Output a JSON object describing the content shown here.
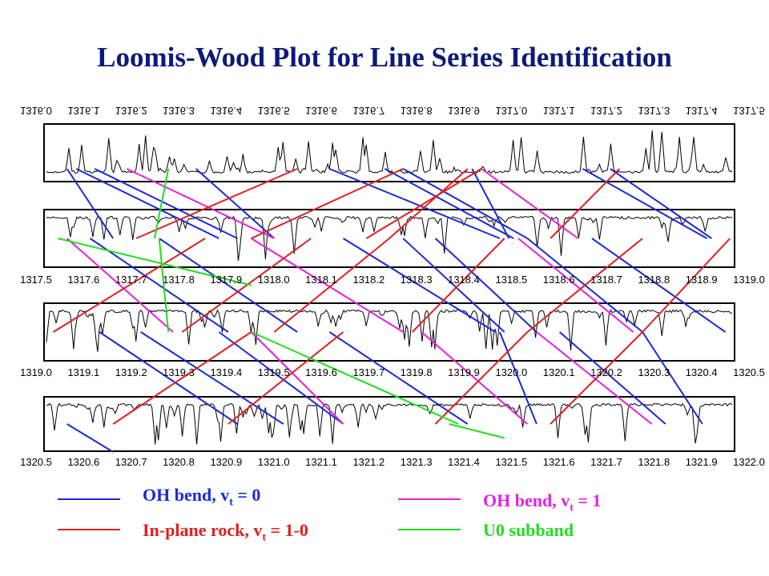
{
  "page": {
    "title": "Loomis-Wood Plot for Line Series Identification"
  },
  "chart_data": {
    "type": "line",
    "title": "Loomis-Wood Plot for Line Series Identification",
    "panels": [
      {
        "range": [
          1316.0,
          1317.5
        ],
        "ticks": [
          "1316.0",
          "1316.1",
          "1316.2",
          "1316.3",
          "1316.4",
          "1316.5",
          "1316.6",
          "1316.7",
          "1316.8",
          "1316.9",
          "1317.0",
          "1317.1",
          "1317.2",
          "1317.3",
          "1317.4",
          "1317.5"
        ],
        "ticks_mirrored": true,
        "direction": "up",
        "seed": 3
      },
      {
        "range": [
          1317.5,
          1319.0
        ],
        "ticks": [
          "1317.5",
          "1317.6",
          "1317.7",
          "1317.8",
          "1317.9",
          "1318.0",
          "1318.1",
          "1318.2",
          "1318.3",
          "1318.4",
          "1318.5",
          "1318.6",
          "1318.7",
          "1318.8",
          "1318.9",
          "1319.0"
        ],
        "ticks_mirrored": false,
        "direction": "down",
        "seed": 11
      },
      {
        "range": [
          1319.0,
          1320.5
        ],
        "ticks": [
          "1319.0",
          "1319.1",
          "1319.2",
          "1319.3",
          "1319.4",
          "1319.5",
          "1319.6",
          "1319.7",
          "1319.8",
          "1319.9",
          "1320.0",
          "1320.1",
          "1320.2",
          "1320.3",
          "1320.4",
          "1320.5"
        ],
        "ticks_mirrored": false,
        "direction": "down",
        "seed": 23
      },
      {
        "range": [
          1320.5,
          1322.0
        ],
        "ticks": [
          "1320.5",
          "1320.6",
          "1320.7",
          "1320.8",
          "1320.9",
          "1321.0",
          "1321.1",
          "1321.2",
          "1321.3",
          "1321.4",
          "1321.5",
          "1321.6",
          "1321.7",
          "1321.8",
          "1321.9",
          "1322.0"
        ],
        "ticks_mirrored": false,
        "direction": "down",
        "seed": 37
      }
    ],
    "series": [
      {
        "key": "oh0",
        "name": "OH bend, v",
        "sub": "t",
        "suffix": " = 0",
        "color": "#1a2ad8"
      },
      {
        "key": "ohl",
        "name": "OH bend, v",
        "sub": "t",
        "suffix": " = 1",
        "color": "#e61fe0"
      },
      {
        "key": "rock",
        "name": "In-plane rock, v",
        "sub": "t",
        "suffix": " = 1-0",
        "color": "#e02020"
      },
      {
        "key": "u0",
        "name": "U0 subband",
        "sub": "",
        "suffix": "",
        "color": "#22dd22"
      }
    ],
    "legend_placement": "bottom",
    "connectors": [
      {
        "s": "oh0",
        "x1": 1316.07,
        "r1": 1,
        "x2": 1316.38,
        "r2": 2
      },
      {
        "s": "oh0",
        "x1": 1316.11,
        "r1": 1,
        "x2": 1316.42,
        "r2": 2
      },
      {
        "s": "oh0",
        "x1": 1316.33,
        "r1": 1,
        "x2": 1316.5,
        "r2": 2
      },
      {
        "s": "oh0",
        "x1": 1316.62,
        "r1": 1,
        "x2": 1316.99,
        "r2": 2
      },
      {
        "s": "oh0",
        "x1": 1316.74,
        "r1": 1,
        "x2": 1317.02,
        "r2": 2
      },
      {
        "s": "oh0",
        "x1": 1316.93,
        "r1": 1,
        "x2": 1317.01,
        "r2": 2
      },
      {
        "s": "oh0",
        "x1": 1316.78,
        "r1": 1,
        "x2": 1317.05,
        "r2": 2
      },
      {
        "s": "oh0",
        "x1": 1317.23,
        "r1": 1,
        "x2": 1317.45,
        "r2": 2
      },
      {
        "s": "oh0",
        "x1": 1317.17,
        "r1": 1,
        "x2": 1317.44,
        "r2": 2
      },
      {
        "s": "oh0",
        "x1": 1316.05,
        "r1": 1,
        "x2": 1316.15,
        "r2": 2
      },
      {
        "s": "oh0",
        "x1": 1316.1,
        "r1": 2,
        "x2": 1316.4,
        "r2": 3
      },
      {
        "s": "oh0",
        "x1": 1316.25,
        "r1": 2,
        "x2": 1316.55,
        "r2": 3
      },
      {
        "s": "oh0",
        "x1": 1316.65,
        "r1": 2,
        "x2": 1316.98,
        "r2": 3
      },
      {
        "s": "oh0",
        "x1": 1316.78,
        "r1": 2,
        "x2": 1317.0,
        "r2": 3
      },
      {
        "s": "oh0",
        "x1": 1316.85,
        "r1": 2,
        "x2": 1317.07,
        "r2": 3
      },
      {
        "s": "oh0",
        "x1": 1317.05,
        "r1": 2,
        "x2": 1317.3,
        "r2": 3
      },
      {
        "s": "oh0",
        "x1": 1317.19,
        "r1": 2,
        "x2": 1317.48,
        "r2": 3
      },
      {
        "s": "oh0",
        "x1": 1316.12,
        "r1": 3,
        "x2": 1316.42,
        "r2": 4
      },
      {
        "s": "oh0",
        "x1": 1316.21,
        "r1": 3,
        "x2": 1316.52,
        "r2": 4
      },
      {
        "s": "oh0",
        "x1": 1316.38,
        "r1": 3,
        "x2": 1316.65,
        "r2": 4
      },
      {
        "s": "oh0",
        "x1": 1316.62,
        "r1": 3,
        "x2": 1316.92,
        "r2": 4
      },
      {
        "s": "oh0",
        "x1": 1316.99,
        "r1": 3,
        "x2": 1317.07,
        "r2": 4
      },
      {
        "s": "oh0",
        "x1": 1317.12,
        "r1": 3,
        "x2": 1317.35,
        "r2": 4
      },
      {
        "s": "oh0",
        "x1": 1317.3,
        "r1": 3,
        "x2": 1317.43,
        "r2": 4
      },
      {
        "s": "oh0",
        "x1": 1316.05,
        "r1": 4,
        "x2": 1316.15,
        "r2": 5
      },
      {
        "s": "ohl",
        "x1": 1316.18,
        "r1": 1,
        "x2": 1316.5,
        "r2": 2
      },
      {
        "s": "ohl",
        "x1": 1316.95,
        "r1": 1,
        "x2": 1317.16,
        "r2": 2
      },
      {
        "s": "ohl",
        "x1": 1316.05,
        "r1": 2,
        "x2": 1316.28,
        "r2": 3
      },
      {
        "s": "ohl",
        "x1": 1316.45,
        "r1": 2,
        "x2": 1316.78,
        "r2": 3
      },
      {
        "s": "ohl",
        "x1": 1317.03,
        "r1": 2,
        "x2": 1317.28,
        "r2": 3
      },
      {
        "s": "ohl",
        "x1": 1316.82,
        "r1": 3,
        "x2": 1317.05,
        "r2": 4
      },
      {
        "s": "ohl",
        "x1": 1317.07,
        "r1": 3,
        "x2": 1317.32,
        "r2": 4
      },
      {
        "s": "ohl",
        "x1": 1316.45,
        "r1": 3,
        "x2": 1316.65,
        "r2": 4
      },
      {
        "s": "rock",
        "x1": 1316.2,
        "r1": 2,
        "x2": 1316.55,
        "r2": 1
      },
      {
        "s": "rock",
        "x1": 1316.45,
        "r1": 2,
        "x2": 1316.78,
        "r2": 1
      },
      {
        "s": "rock",
        "x1": 1316.7,
        "r1": 2,
        "x2": 1316.95,
        "r2": 1
      },
      {
        "s": "rock",
        "x1": 1316.75,
        "r1": 2,
        "x2": 1316.92,
        "r2": 1
      },
      {
        "s": "rock",
        "x1": 1317.1,
        "r1": 2,
        "x2": 1317.25,
        "r2": 1
      },
      {
        "s": "rock",
        "x1": 1316.02,
        "r1": 3,
        "x2": 1316.35,
        "r2": 2
      },
      {
        "s": "rock",
        "x1": 1316.3,
        "r1": 3,
        "x2": 1316.58,
        "r2": 2
      },
      {
        "s": "rock",
        "x1": 1316.5,
        "r1": 3,
        "x2": 1316.75,
        "r2": 2
      },
      {
        "s": "rock",
        "x1": 1316.8,
        "r1": 3,
        "x2": 1317.0,
        "r2": 2
      },
      {
        "s": "rock",
        "x1": 1317.05,
        "r1": 3,
        "x2": 1317.3,
        "r2": 2
      },
      {
        "s": "rock",
        "x1": 1317.3,
        "r1": 3,
        "x2": 1317.49,
        "r2": 2
      },
      {
        "s": "rock",
        "x1": 1316.15,
        "r1": 4,
        "x2": 1316.45,
        "r2": 3
      },
      {
        "s": "rock",
        "x1": 1316.4,
        "r1": 4,
        "x2": 1316.65,
        "r2": 3
      },
      {
        "s": "rock",
        "x1": 1316.85,
        "r1": 4,
        "x2": 1317.05,
        "r2": 3
      },
      {
        "s": "rock",
        "x1": 1317.1,
        "r1": 4,
        "x2": 1317.3,
        "r2": 3
      },
      {
        "s": "u0",
        "x1": 1316.27,
        "r1": 1,
        "x2": 1316.24,
        "r2": 2
      },
      {
        "s": "u0",
        "x1": 1316.25,
        "r1": 2,
        "x2": 1316.27,
        "r2": 3
      },
      {
        "s": "u0",
        "x1": 1316.03,
        "r1": 2,
        "x2": 1316.45,
        "r2": 2.5
      },
      {
        "s": "u0",
        "x1": 1316.45,
        "r1": 3,
        "x2": 1316.9,
        "r2": 4
      },
      {
        "s": "u0",
        "x1": 1316.88,
        "r1": 4,
        "x2": 1317.0,
        "r2": 4.5
      }
    ]
  },
  "legend": [
    {
      "key": "oh0",
      "label": "OH bend, v",
      "sub": "t",
      "suffix": " = 0",
      "color": "#1a2ad8"
    },
    {
      "key": "ohl",
      "label": "OH bend, v",
      "sub": "t",
      "suffix": " = 1",
      "color": "#e61fe0"
    },
    {
      "key": "rock",
      "label": "In-plane rock, v",
      "sub": "t",
      "suffix": " = 1-0",
      "color": "#e02020"
    },
    {
      "key": "u0",
      "label": "U0 subband",
      "sub": "",
      "suffix": "",
      "color": "#22dd22"
    }
  ]
}
